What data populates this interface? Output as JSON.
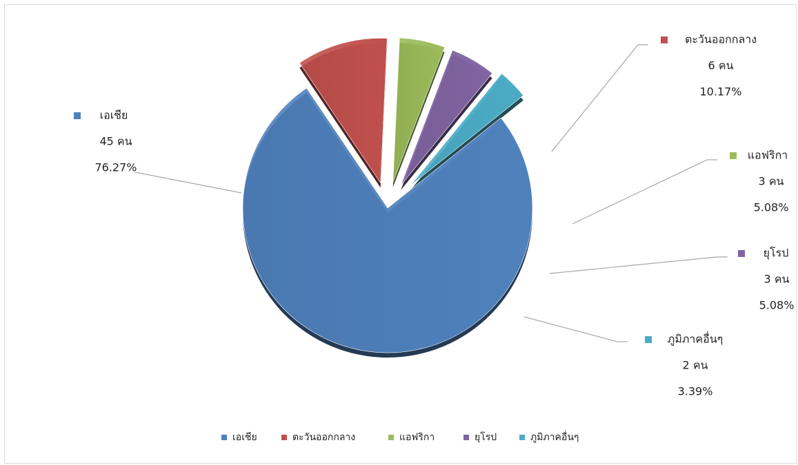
{
  "chart_data": {
    "type": "pie",
    "categories": [
      "เอเชีย",
      "ตะวันออกกลาง",
      "แอฟริกา",
      "ยุโรป",
      "ภูมิภาคอื่นๆ"
    ],
    "values": [
      76.27,
      10.17,
      5.08,
      5.08,
      3.39
    ],
    "value_labels": [
      "76.27%",
      "10.17%",
      "5.08%",
      "5.08%",
      "3.39%"
    ],
    "counts": [
      45,
      6,
      3,
      3,
      2
    ],
    "count_labels": [
      "45 คน",
      "6 คน",
      "3 คน",
      "3 คน",
      "2 คน"
    ],
    "colors": [
      "#4f81bd",
      "#c0504d",
      "#9bbb59",
      "#8064a2",
      "#4bacc6"
    ],
    "legend": "bottom"
  }
}
